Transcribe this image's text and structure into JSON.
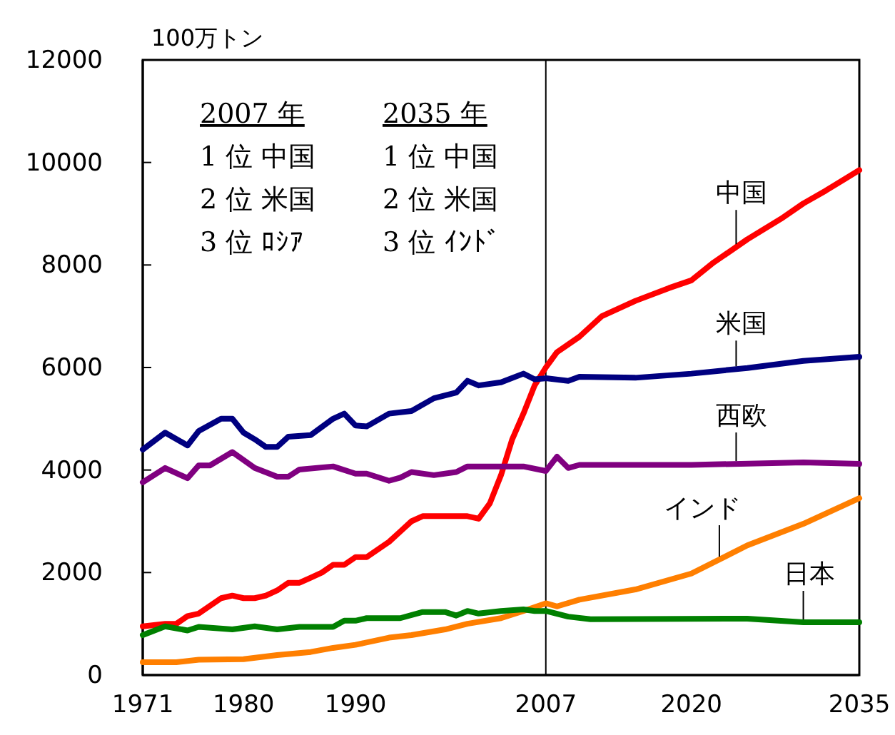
{
  "chart_data": {
    "type": "line",
    "ylabel": "100万トン",
    "xlim": [
      1971,
      2035
    ],
    "xticks": [
      1971,
      1980,
      1990,
      2007,
      2020,
      2035
    ],
    "ylim": [
      0,
      12000
    ],
    "yticks": [
      0,
      2000,
      4000,
      6000,
      8000,
      10000,
      12000
    ],
    "grid": false,
    "legend": false,
    "marker": "none",
    "line_style": "solid",
    "ref_lines": [
      {
        "axis": "x",
        "value": 2007,
        "color": "#000000"
      }
    ],
    "annotations": [
      "2007 年",
      "1 位 中国",
      "2 位 米国",
      "3 位 ﾛｼｱ",
      "2035 年",
      "1 位 中国",
      "2 位 米国",
      "3 位 ｲﾝﾄﾞ"
    ],
    "series": [
      {
        "name": "中国",
        "color": "#ff0000",
        "x": [
          1971,
          1973,
          1974,
          1975,
          1976,
          1977,
          1978,
          1979,
          1980,
          1981,
          1982,
          1983,
          1984,
          1985,
          1986,
          1987,
          1988,
          1989,
          1990,
          1991,
          1992,
          1993,
          1994,
          1995,
          1996,
          1997,
          1998,
          1999,
          2000,
          2001,
          2002,
          2003,
          2004,
          2005,
          2006,
          2007,
          2008,
          2010,
          2012,
          2015,
          2018,
          2020,
          2022,
          2025,
          2028,
          2030,
          2032,
          2035
        ],
        "values": [
          950,
          1000,
          1000,
          1150,
          1200,
          1350,
          1500,
          1550,
          1500,
          1500,
          1550,
          1650,
          1800,
          1800,
          1900,
          2000,
          2150,
          2150,
          2300,
          2300,
          2450,
          2600,
          2800,
          3000,
          3100,
          3100,
          3100,
          3100,
          3100,
          3050,
          3350,
          3900,
          4600,
          5100,
          5650,
          6000,
          6300,
          6600,
          7000,
          7300,
          7550,
          7700,
          8050,
          8500,
          8900,
          9200,
          9450,
          9850
        ]
      },
      {
        "name": "米国",
        "color": "#000080",
        "x": [
          1971,
          1973,
          1975,
          1976,
          1978,
          1979,
          1980,
          1981,
          1982,
          1983,
          1984,
          1986,
          1988,
          1989,
          1990,
          1991,
          1993,
          1995,
          1997,
          1999,
          2000,
          2001,
          2003,
          2005,
          2006,
          2007,
          2009,
          2010,
          2015,
          2020,
          2025,
          2030,
          2035
        ],
        "values": [
          4400,
          4730,
          4480,
          4760,
          5000,
          5000,
          4730,
          4600,
          4450,
          4450,
          4650,
          4680,
          5000,
          5100,
          4870,
          4850,
          5100,
          5150,
          5400,
          5510,
          5740,
          5650,
          5710,
          5880,
          5770,
          5790,
          5740,
          5820,
          5800,
          5880,
          5990,
          6130,
          6210
        ]
      },
      {
        "name": "西欧",
        "color": "#800080",
        "x": [
          1971,
          1973,
          1975,
          1976,
          1977,
          1979,
          1981,
          1983,
          1984,
          1985,
          1988,
          1990,
          1991,
          1993,
          1994,
          1995,
          1997,
          1999,
          2000,
          2005,
          2007,
          2008,
          2009,
          2010,
          2020,
          2030,
          2035
        ],
        "values": [
          3760,
          4040,
          3840,
          4090,
          4090,
          4350,
          4040,
          3870,
          3870,
          4010,
          4070,
          3930,
          3930,
          3790,
          3850,
          3960,
          3900,
          3960,
          4070,
          4070,
          3980,
          4260,
          4040,
          4100,
          4100,
          4150,
          4120
        ]
      },
      {
        "name": "インド",
        "color": "#ff7f00",
        "x": [
          1971,
          1974,
          1976,
          1980,
          1983,
          1986,
          1988,
          1990,
          1993,
          1995,
          1998,
          2000,
          2003,
          2005,
          2007,
          2008,
          2010,
          2015,
          2020,
          2025,
          2030,
          2035
        ],
        "values": [
          250,
          250,
          300,
          310,
          390,
          450,
          530,
          590,
          730,
          780,
          890,
          1000,
          1110,
          1250,
          1400,
          1340,
          1470,
          1670,
          1980,
          2530,
          2950,
          3450
        ]
      },
      {
        "name": "日本",
        "color": "#008000",
        "x": [
          1971,
          1973,
          1975,
          1976,
          1979,
          1981,
          1983,
          1985,
          1988,
          1989,
          1990,
          1991,
          1994,
          1996,
          1998,
          1999,
          2000,
          2001,
          2003,
          2005,
          2006,
          2007,
          2009,
          2011,
          2025,
          2030,
          2035
        ],
        "values": [
          780,
          950,
          870,
          940,
          890,
          950,
          890,
          940,
          940,
          1060,
          1060,
          1110,
          1110,
          1230,
          1230,
          1160,
          1250,
          1200,
          1250,
          1280,
          1250,
          1250,
          1140,
          1090,
          1100,
          1030,
          1030
        ]
      }
    ]
  }
}
